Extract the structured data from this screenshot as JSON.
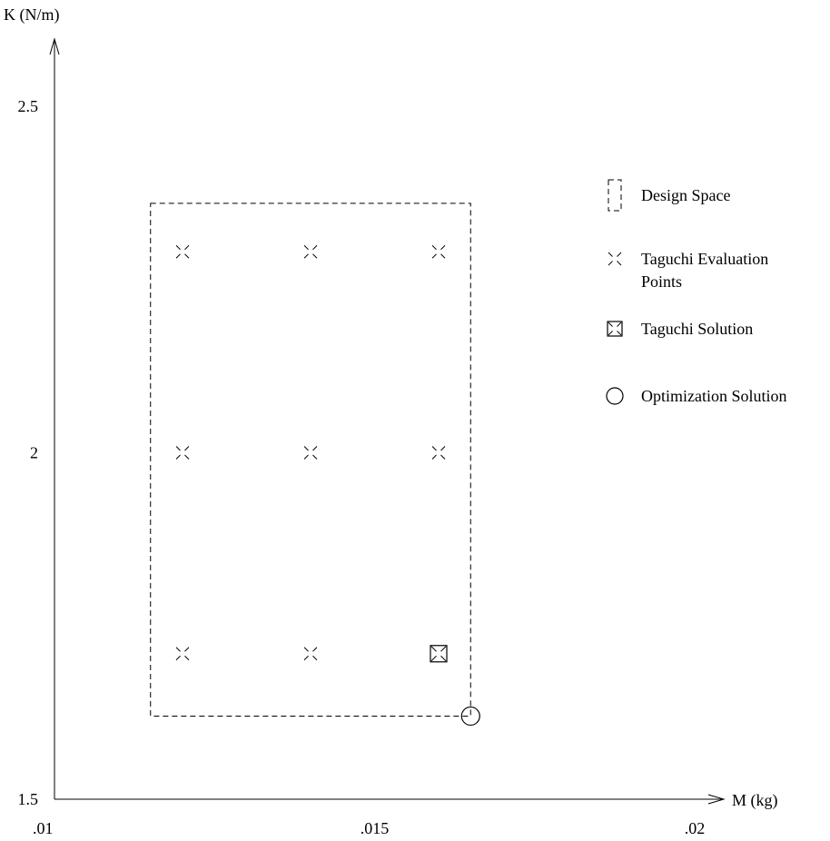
{
  "chart_data": {
    "type": "scatter",
    "title": "",
    "xlabel": "M (kg)",
    "ylabel": "K (N/m)",
    "xlim": [
      0.01,
      0.02
    ],
    "ylim": [
      1.5,
      2.5
    ],
    "x_ticks": [
      {
        "value": 0.01,
        "label": ".01"
      },
      {
        "value": 0.015,
        "label": ".015"
      },
      {
        "value": 0.02,
        "label": ".02"
      }
    ],
    "y_ticks": [
      {
        "value": 1.5,
        "label": "1.5"
      },
      {
        "value": 2.0,
        "label": "2"
      },
      {
        "value": 2.5,
        "label": "2.5"
      }
    ],
    "grid": false,
    "legend_position": "right",
    "design_space": {
      "name": "Design Space",
      "x": [
        0.0115,
        0.0165
      ],
      "y": [
        1.62,
        2.36
      ]
    },
    "series": [
      {
        "name": "Taguchi Evaluation Points",
        "marker": "x",
        "points": [
          {
            "x": 0.012,
            "y": 2.29
          },
          {
            "x": 0.014,
            "y": 2.29
          },
          {
            "x": 0.016,
            "y": 2.29
          },
          {
            "x": 0.012,
            "y": 2.0
          },
          {
            "x": 0.014,
            "y": 2.0
          },
          {
            "x": 0.016,
            "y": 2.0
          },
          {
            "x": 0.012,
            "y": 1.71
          },
          {
            "x": 0.014,
            "y": 1.71
          }
        ]
      },
      {
        "name": "Taguchi Solution",
        "marker": "boxed-x",
        "points": [
          {
            "x": 0.016,
            "y": 1.71
          }
        ]
      },
      {
        "name": "Optimization Solution",
        "marker": "circle",
        "points": [
          {
            "x": 0.0165,
            "y": 1.62
          }
        ]
      }
    ],
    "legend": [
      {
        "label": "Design Space",
        "marker": "dashed-rect"
      },
      {
        "label": "Taguchi Evaluation Points",
        "marker": "x"
      },
      {
        "label": "Taguchi Solution",
        "marker": "boxed-x"
      },
      {
        "label": "Optimization Solution",
        "marker": "circle"
      }
    ]
  }
}
